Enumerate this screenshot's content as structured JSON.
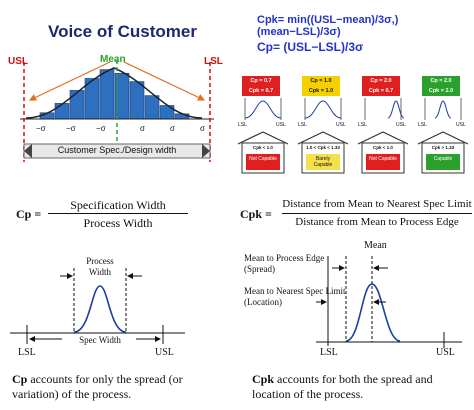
{
  "voc": {
    "title": "Voice of Customer",
    "usl": "USL",
    "lsl": "LSL",
    "mean": "Mean",
    "sigma_labels": [
      "−σ",
      "−σ",
      "−σ",
      "σ",
      "σ",
      "σ"
    ],
    "spec_width": "Customer Spec./Design width",
    "bar_values": [
      0.12,
      0.3,
      0.55,
      0.78,
      0.95,
      0.88,
      0.72,
      0.45,
      0.26,
      0.1
    ]
  },
  "formulas": {
    "cpk": "Cpk= min((USL−mean)/3σ,)(mean−LSL)/3σ)",
    "cp": "Cp= (USL−LSL)/3σ"
  },
  "panels": [
    {
      "badge_top": "Cp = 0.7",
      "badge_bottom": "Cpk = 0.7",
      "badge_color": "#e02020",
      "house_range": "Cpk < 1.0",
      "house_label": "Not Capable",
      "house_color": "#e02020",
      "lsl": "LSL",
      "usl": "USL"
    },
    {
      "badge_top": "Cp = 1.0",
      "badge_bottom": "Cpk = 1.0",
      "badge_color": "#f4d000",
      "house_range": "1.0 < Cpk < 1.33",
      "house_label": "Barely Capable",
      "house_color": "#f4e04a",
      "lsl": "LSL",
      "usl": "USL"
    },
    {
      "badge_top": "Cp = 2.0",
      "badge_bottom": "Cpk = 0.7",
      "badge_color": "#e02020",
      "house_range": "Cpk < 1.0",
      "house_label": "Not Capable",
      "house_color": "#e02020",
      "lsl": "LSL",
      "usl": "USL"
    },
    {
      "badge_top": "Cp = 2.0",
      "badge_bottom": "Cpk = 2.0",
      "badge_color": "#2ca02c",
      "house_range": "Cpk > 1.33",
      "house_label": "Capable",
      "house_color": "#2ca02c",
      "lsl": "LSL",
      "usl": "USL"
    }
  ],
  "cp_def": {
    "label": "Cp =",
    "numerator": "Specification Width",
    "denominator": "Process Width",
    "process_width": "Process Width",
    "spec_width": "Spec Width",
    "lsl": "LSL",
    "usl": "USL",
    "caption_bold": "Cp",
    "caption_rest": " accounts for only the spread (or variation) of the process."
  },
  "cpk_def": {
    "label": "Cpk =",
    "numerator": "Distance from Mean to Nearest Spec Limit",
    "denominator": "Distance from Mean to Process Edge",
    "mean": "Mean",
    "edge_label": "Mean to Process Edge (Spread)",
    "nearest_label": "Mean to Nearest Spec Limit (Location)",
    "lsl": "LSL",
    "usl": "USL",
    "caption_bold": "Cpk",
    "caption_rest": " accounts for both the spread and location of the process."
  }
}
